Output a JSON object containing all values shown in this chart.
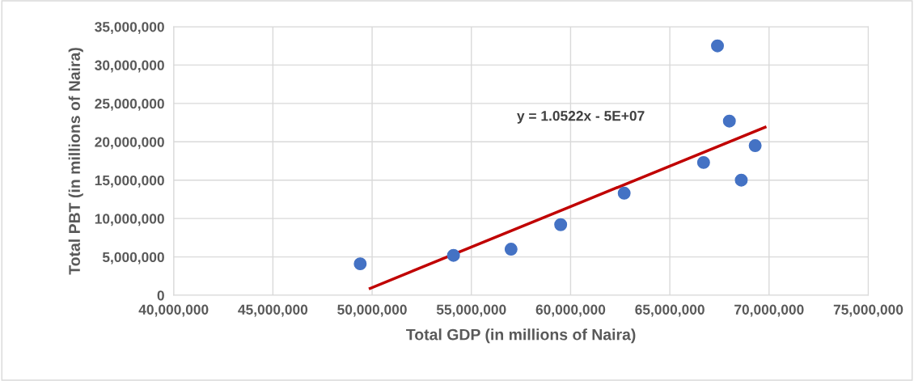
{
  "chart_data": {
    "type": "scatter",
    "xlabel": "Total GDP (in millions of Naira)",
    "ylabel": "Total PBT (in millions of Naira)",
    "annotations": [
      "y = 1.0522x - 5E+07"
    ],
    "series": [
      {
        "color": "#4472c4",
        "marker": "circle",
        "x": [
          49400000,
          54100000,
          57000000,
          59500000,
          62700000,
          66700000,
          67400000,
          68000000,
          68600000,
          69300000
        ],
        "values": [
          4100000,
          5200000,
          6000000,
          9200000,
          13300000,
          17300000,
          32500000,
          22700000,
          15000000,
          19500000
        ]
      },
      {
        "type": "line",
        "color": "#c00000",
        "x": [
          49900000,
          69800000
        ],
        "values": [
          900000,
          21900000
        ]
      }
    ],
    "xlim": [
      40000000,
      75000000
    ],
    "xticks": [
      {
        "value": 40000000,
        "label": "40,000,000"
      },
      {
        "value": 45000000,
        "label": "45,000,000"
      },
      {
        "value": 50000000,
        "label": "50,000,000"
      },
      {
        "value": 55000000,
        "label": "55,000,000"
      },
      {
        "value": 60000000,
        "label": "60,000,000"
      },
      {
        "value": 65000000,
        "label": "65,000,000"
      },
      {
        "value": 70000000,
        "label": "70,000,000"
      },
      {
        "value": 75000000,
        "label": "75,000,000"
      }
    ],
    "ylim": [
      0,
      35000000
    ],
    "yticks": [
      0,
      {
        "value": 5000000,
        "label": "5,000,000"
      },
      {
        "value": 10000000,
        "label": "10,000,000"
      },
      {
        "value": 15000000,
        "label": "15,000,000"
      },
      {
        "value": 20000000,
        "label": "20,000,000"
      },
      {
        "value": 25000000,
        "label": "25,000,000"
      },
      {
        "value": 30000000,
        "label": "30,000,000"
      },
      {
        "value": 35000000,
        "label": "35,000,000"
      }
    ],
    "grid": true
  }
}
